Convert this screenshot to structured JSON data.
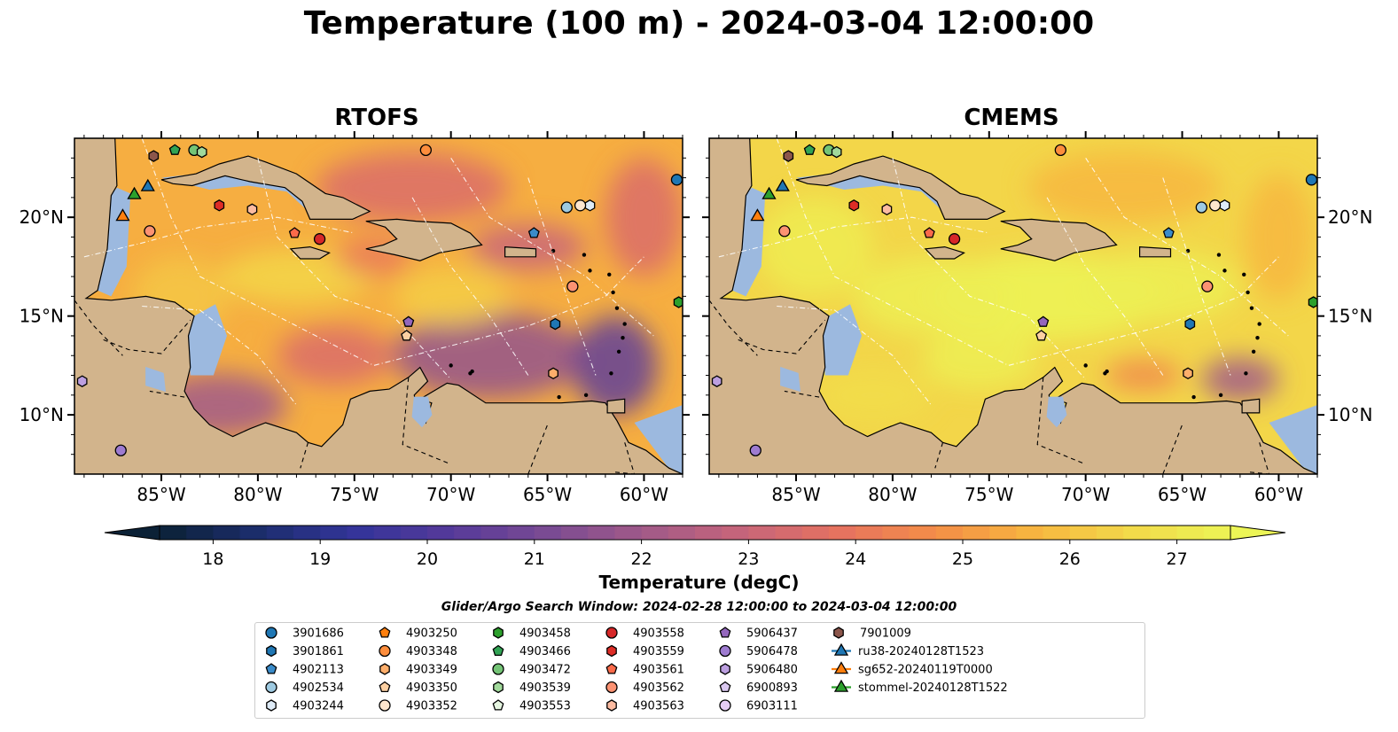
{
  "title": "Temperature (100 m) - 2024-03-04 12:00:00",
  "panels": [
    {
      "title": "RTOFS",
      "scheme": "rtofs"
    },
    {
      "title": "CMEMS",
      "scheme": "cmems"
    }
  ],
  "map": {
    "lon_range": [
      -89.5,
      -58.0
    ],
    "lat_range": [
      7.0,
      24.0
    ],
    "lon_ticks": [
      -85,
      -80,
      -75,
      -70,
      -65,
      -60
    ],
    "lon_tick_labels": [
      "85°W",
      "80°W",
      "75°W",
      "70°W",
      "65°W",
      "60°W"
    ],
    "lat_ticks": [
      10,
      15,
      20
    ],
    "lat_tick_labels": [
      "10°N",
      "15°N",
      "20°N"
    ]
  },
  "colorbar": {
    "label": "Temperature (degC)",
    "min": 17.5,
    "max": 27.5,
    "step": 0.25,
    "ticks": [
      18,
      19,
      20,
      21,
      22,
      23,
      24,
      25,
      26,
      27
    ],
    "tick_labels": [
      "18",
      "19",
      "20",
      "21",
      "22",
      "23",
      "24",
      "25",
      "26",
      "27"
    ],
    "colormap_stops": [
      "#0b2136",
      "#1c2d6c",
      "#33349a",
      "#563a9a",
      "#7a4b93",
      "#a25a88",
      "#c7657a",
      "#e6735f",
      "#f48f47",
      "#f7b640",
      "#f2da4a",
      "#ecf556"
    ],
    "extend": "both"
  },
  "search_window": "Glider/Argo Search Window: 2024-02-28 12:00:00 to 2024-03-04 12:00:00",
  "legend_items": [
    {
      "label": "3901686",
      "marker": "circle",
      "color": "#1f77b4"
    },
    {
      "label": "3901861",
      "marker": "hexagon",
      "color": "#1f77b4"
    },
    {
      "label": "4902113",
      "marker": "pentagon",
      "color": "#3a8bc9"
    },
    {
      "label": "4902534",
      "marker": "circle",
      "color": "#9ecae1"
    },
    {
      "label": "4903244",
      "marker": "hexagon",
      "color": "#deebf7"
    },
    {
      "label": "4903250",
      "marker": "pentagon",
      "color": "#ff7f0e"
    },
    {
      "label": "4903348",
      "marker": "circle",
      "color": "#fd8d3c"
    },
    {
      "label": "4903349",
      "marker": "hexagon",
      "color": "#fdae6b"
    },
    {
      "label": "4903350",
      "marker": "pentagon",
      "color": "#fdd0a2"
    },
    {
      "label": "4903352",
      "marker": "circle",
      "color": "#fee6ce"
    },
    {
      "label": "4903458",
      "marker": "hexagon",
      "color": "#2ca02c"
    },
    {
      "label": "4903466",
      "marker": "pentagon",
      "color": "#31a354"
    },
    {
      "label": "4903472",
      "marker": "circle",
      "color": "#74c476"
    },
    {
      "label": "4903539",
      "marker": "hexagon",
      "color": "#a1d99b"
    },
    {
      "label": "4903553",
      "marker": "pentagon",
      "color": "#e5f5e0"
    },
    {
      "label": "4903558",
      "marker": "circle",
      "color": "#d62728"
    },
    {
      "label": "4903559",
      "marker": "hexagon",
      "color": "#de2d26"
    },
    {
      "label": "4903561",
      "marker": "pentagon",
      "color": "#fb6a4a"
    },
    {
      "label": "4903562",
      "marker": "circle",
      "color": "#fc9272"
    },
    {
      "label": "4903563",
      "marker": "hexagon",
      "color": "#fcbba1"
    },
    {
      "label": "5906437",
      "marker": "pentagon",
      "color": "#9467bd"
    },
    {
      "label": "5906478",
      "marker": "circle",
      "color": "#9e7bd0"
    },
    {
      "label": "5906480",
      "marker": "hexagon",
      "color": "#bc9fe0"
    },
    {
      "label": "6900893",
      "marker": "pentagon",
      "color": "#dac8f0"
    },
    {
      "label": "6903111",
      "marker": "circle",
      "color": "#e6ccf5"
    },
    {
      "label": "7901009",
      "marker": "hexagon",
      "color": "#8c564b"
    },
    {
      "label": "ru38-20240128T1523",
      "marker": "triangle-line",
      "color": "#1f77b4"
    },
    {
      "label": "sg652-20240119T0000",
      "marker": "triangle-line",
      "color": "#ff7f0e"
    },
    {
      "label": "stommel-20240128T1522",
      "marker": "triangle-line",
      "color": "#2ca02c"
    }
  ],
  "observations": [
    {
      "id": "3901686",
      "lon": -58.3,
      "lat": 21.9
    },
    {
      "id": "4902534",
      "lon": -64.0,
      "lat": 20.5
    },
    {
      "id": "4903244",
      "lon": -62.8,
      "lat": 20.6
    },
    {
      "id": "4903352",
      "lon": -63.3,
      "lat": 20.6
    },
    {
      "id": "4902113",
      "lon": -65.7,
      "lat": 19.2
    },
    {
      "id": "3901861",
      "lon": -64.6,
      "lat": 14.6
    },
    {
      "id": "4903562",
      "lon": -63.7,
      "lat": 16.5
    },
    {
      "id": "4903458",
      "lon": -58.2,
      "lat": 15.7
    },
    {
      "id": "4903349",
      "lon": -64.7,
      "lat": 12.1
    },
    {
      "id": "5906437",
      "lon": -72.2,
      "lat": 14.7
    },
    {
      "id": "4903350",
      "lon": -72.3,
      "lat": 14.0
    },
    {
      "id": "4903561",
      "lon": -78.1,
      "lat": 19.2
    },
    {
      "id": "4903558",
      "lon": -76.8,
      "lat": 18.9
    },
    {
      "id": "4903559",
      "lon": -82.0,
      "lat": 20.6
    },
    {
      "id": "4903563",
      "lon": -80.3,
      "lat": 20.4
    },
    {
      "id": "4903562-b",
      "lon": -85.6,
      "lat": 19.3
    },
    {
      "id": "4903348",
      "lon": -71.3,
      "lat": 23.4
    },
    {
      "id": "7901009",
      "lon": -85.4,
      "lat": 23.1
    },
    {
      "id": "4903466",
      "lon": -84.3,
      "lat": 23.4
    },
    {
      "id": "4903472",
      "lon": -83.3,
      "lat": 23.4
    },
    {
      "id": "4903539",
      "lon": -82.9,
      "lat": 23.3
    },
    {
      "id": "5906480",
      "lon": -89.1,
      "lat": 11.7
    },
    {
      "id": "5906478",
      "lon": -87.1,
      "lat": 8.2
    },
    {
      "id": "stommel-20240128T1522",
      "lon": -86.4,
      "lat": 21.2
    },
    {
      "id": "ru38-20240128T1523",
      "lon": -85.7,
      "lat": 21.6
    },
    {
      "id": "sg652-20240119T0000",
      "lon": -87.0,
      "lat": 20.1
    }
  ]
}
